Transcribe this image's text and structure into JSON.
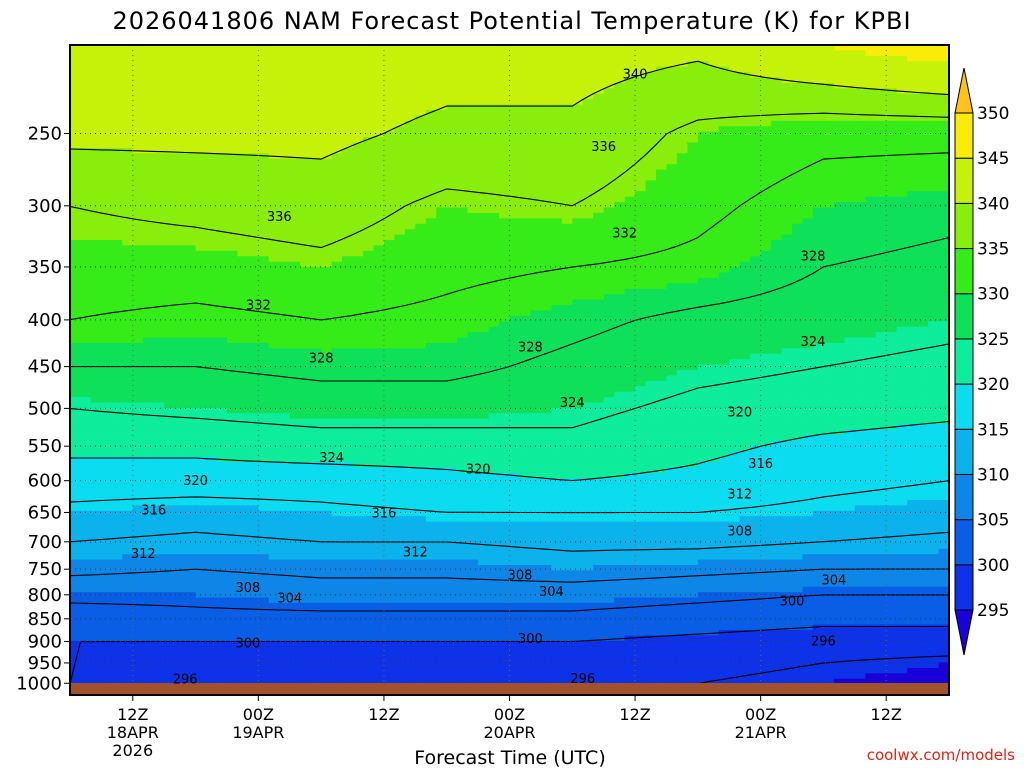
{
  "chart_data": {
    "type": "heatmap",
    "title": "2026041806 NAM Forecast Potential Temperature (K) for KPBI",
    "xlabel": "Forecast Time (UTC)",
    "ylabel": "",
    "credit": "coolwx.com/models",
    "y_scale": "pressure (hPa), plotted with increasing pressure downward",
    "ylim": [
      1030,
      200
    ],
    "y_ticks": [
      {
        "value": 250,
        "label": "250"
      },
      {
        "value": 300,
        "label": "300"
      },
      {
        "value": 350,
        "label": "350"
      },
      {
        "value": 400,
        "label": "400"
      },
      {
        "value": 450,
        "label": "450"
      },
      {
        "value": 500,
        "label": "500"
      },
      {
        "value": 550,
        "label": "550"
      },
      {
        "value": 600,
        "label": "600"
      },
      {
        "value": 650,
        "label": "650"
      },
      {
        "value": 700,
        "label": "700"
      },
      {
        "value": 750,
        "label": "750"
      },
      {
        "value": 800,
        "label": "800"
      },
      {
        "value": 850,
        "label": "850"
      },
      {
        "value": 900,
        "label": "900"
      },
      {
        "value": 950,
        "label": "950"
      },
      {
        "value": 1000,
        "label": "1000"
      }
    ],
    "xlim": [
      0,
      84
    ],
    "x_units": "forecast hours from 2026041806",
    "x_ticks": [
      {
        "value": 6,
        "lines": [
          "12Z",
          "18APR",
          "2026"
        ]
      },
      {
        "value": 18,
        "lines": [
          "00Z",
          "19APR"
        ]
      },
      {
        "value": 30,
        "lines": [
          "12Z"
        ]
      },
      {
        "value": 42,
        "lines": [
          "00Z",
          "20APR"
        ]
      },
      {
        "value": 54,
        "lines": [
          "12Z"
        ]
      },
      {
        "value": 66,
        "lines": [
          "00Z",
          "21APR"
        ]
      },
      {
        "value": 78,
        "lines": [
          "12Z"
        ]
      }
    ],
    "colorbar": {
      "levels": [
        295,
        300,
        305,
        310,
        315,
        320,
        325,
        330,
        335,
        340,
        345,
        350
      ],
      "colors": [
        "#1a00d8",
        "#0d32e8",
        "#0a5ee6",
        "#0d86e8",
        "#0bb2ec",
        "#0bdcef",
        "#0ded9c",
        "#0fe05a",
        "#35ec18",
        "#8aee0c",
        "#c6f20a",
        "#f8ec08",
        "#ffc21a"
      ],
      "extend": "both"
    },
    "contour_interval": 4,
    "contours": [
      {
        "theta": 296,
        "label_at": [
          [
            11,
            988
          ],
          [
            49,
            987
          ],
          [
            72,
            898
          ]
        ]
      },
      {
        "theta": 300,
        "label_at": [
          [
            17,
            902
          ],
          [
            44,
            892
          ],
          [
            69,
            812
          ]
        ]
      },
      {
        "theta": 304,
        "label_at": [
          [
            21,
            805
          ],
          [
            46,
            792
          ],
          [
            73,
            770
          ]
        ]
      },
      {
        "theta": 308,
        "label_at": [
          [
            17,
            784
          ],
          [
            43,
            760
          ],
          [
            64,
            680
          ]
        ]
      },
      {
        "theta": 312,
        "label_at": [
          [
            7,
            720
          ],
          [
            33,
            717
          ],
          [
            64,
            620
          ]
        ]
      },
      {
        "theta": 316,
        "label_at": [
          [
            8,
            645
          ],
          [
            30,
            650
          ],
          [
            66,
            574
          ]
        ]
      },
      {
        "theta": 320,
        "label_at": [
          [
            12,
            599
          ],
          [
            39,
            582
          ],
          [
            64,
            504
          ]
        ]
      },
      {
        "theta": 324,
        "label_at": [
          [
            25,
            565
          ],
          [
            48,
            492
          ],
          [
            71,
            422
          ]
        ]
      },
      {
        "theta": 328,
        "label_at": [
          [
            24,
            440
          ],
          [
            44,
            428
          ],
          [
            71,
            340
          ]
        ]
      },
      {
        "theta": 332,
        "label_at": [
          [
            18,
            385
          ],
          [
            53,
            321
          ]
        ]
      },
      {
        "theta": 336,
        "label_at": [
          [
            20,
            308
          ],
          [
            51,
            258
          ]
        ]
      },
      {
        "theta": 340,
        "label_at": [
          [
            54,
            215
          ]
        ]
      }
    ],
    "theta_profiles": {
      "levels": [
        1000,
        950,
        900,
        850,
        800,
        750,
        700,
        650,
        600,
        550,
        500,
        450,
        400,
        350,
        300,
        250,
        200
      ],
      "columns": [
        {
          "hour": 0,
          "theta": [
            300,
            299,
            300,
            302,
            305,
            309,
            312,
            315,
            318,
            321,
            324,
            328,
            332,
            334,
            336,
            341,
            343
          ]
        },
        {
          "hour": 12,
          "theta": [
            297,
            297,
            300,
            303,
            305,
            308,
            311,
            314,
            318,
            321,
            325,
            328,
            331,
            334,
            337,
            341,
            343
          ]
        },
        {
          "hour": 24,
          "theta": [
            297,
            297,
            300,
            303,
            306,
            309,
            312,
            315,
            318,
            322,
            326,
            329,
            332,
            335,
            338,
            341,
            343
          ]
        },
        {
          "hour": 36,
          "theta": [
            297,
            297,
            300,
            303,
            306,
            309,
            312,
            316,
            319,
            322,
            326,
            329,
            331,
            333,
            335,
            339,
            342
          ]
        },
        {
          "hour": 48,
          "theta": [
            296,
            297,
            300,
            303,
            306,
            310,
            313,
            316,
            320,
            323,
            325,
            327,
            329,
            332,
            336,
            339,
            342
          ]
        },
        {
          "hour": 60,
          "theta": [
            296,
            297,
            299,
            302,
            305,
            309,
            313,
            316,
            319,
            321,
            323,
            325,
            327,
            331,
            333,
            335,
            341
          ]
        },
        {
          "hour": 72,
          "theta": [
            295,
            296,
            298,
            301,
            304,
            308,
            312,
            315,
            317,
            319,
            322,
            324,
            326,
            328,
            330,
            333,
            345
          ]
        },
        {
          "hour": 84,
          "theta": [
            294,
            295,
            298,
            301,
            304,
            308,
            311,
            314,
            316,
            318,
            321,
            323,
            325,
            327,
            329,
            333,
            348
          ]
        }
      ]
    }
  }
}
